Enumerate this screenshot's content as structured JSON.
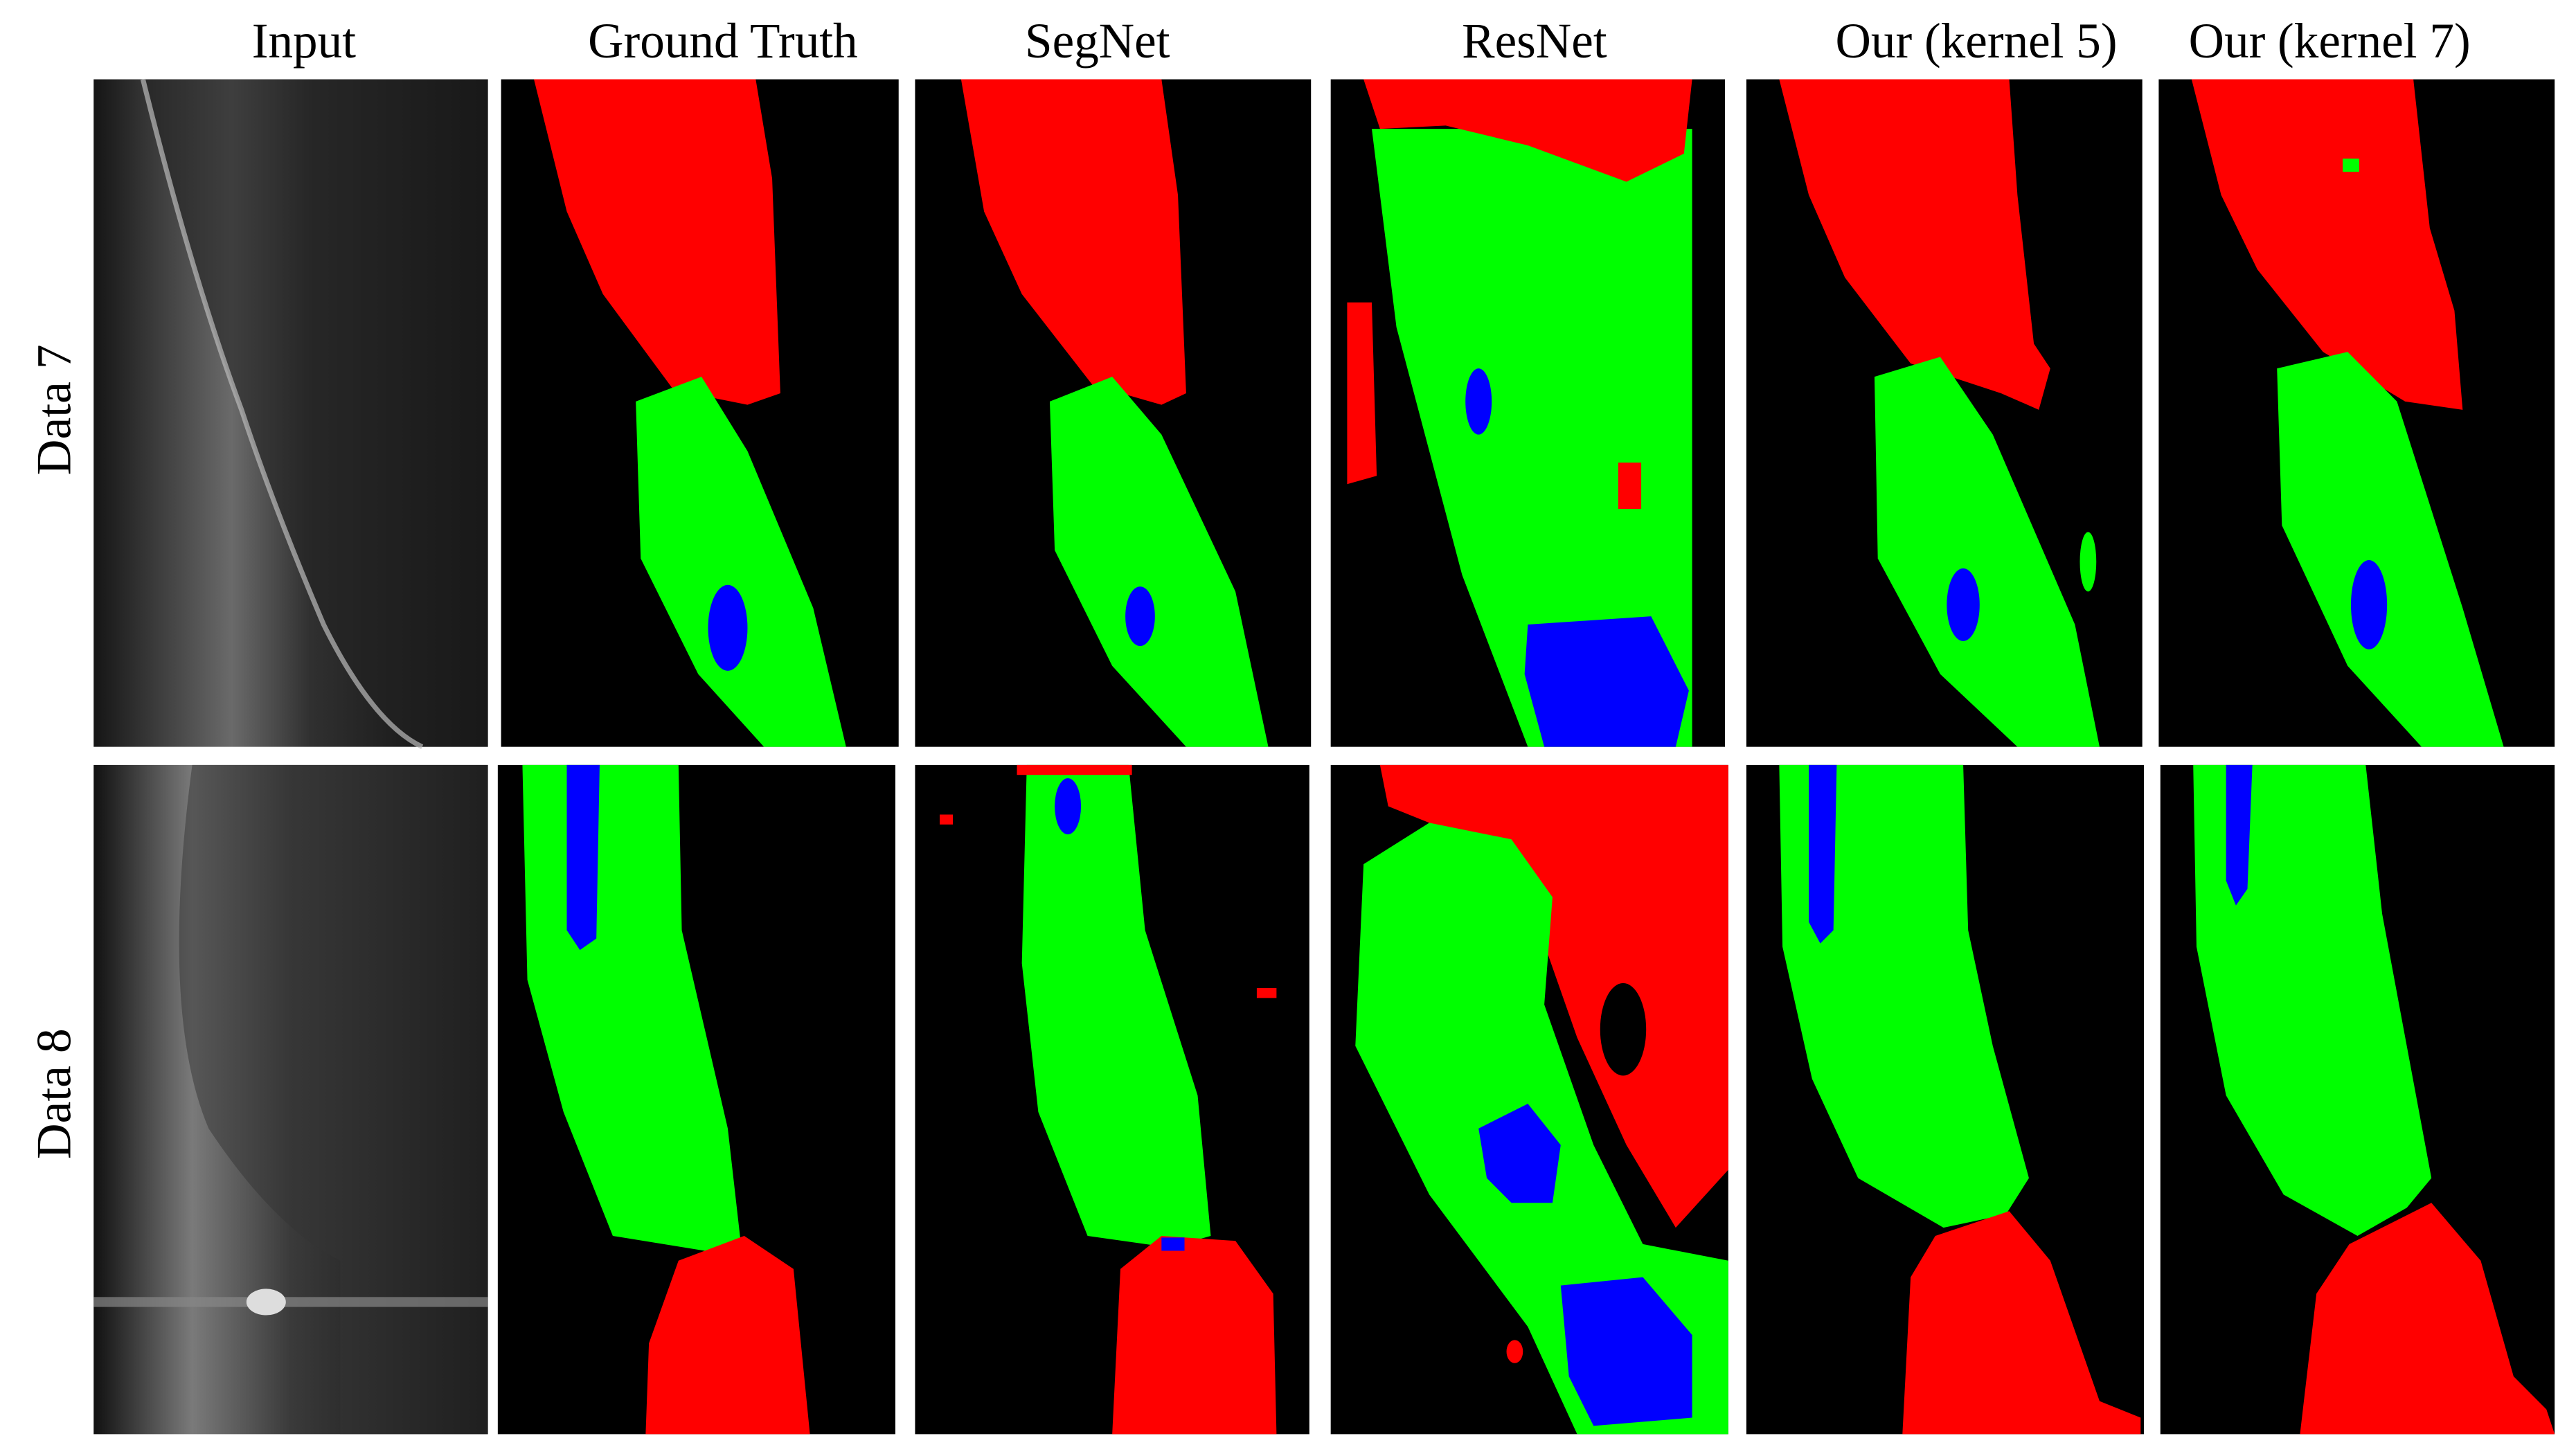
{
  "header": {
    "columns": [
      "Input",
      "Ground Truth",
      "SegNet",
      "ResNet",
      "Our (kernel 5)",
      "Our (kernel 7)"
    ]
  },
  "rows": [
    {
      "label": "Data 7"
    },
    {
      "label": "Data 8"
    }
  ]
}
